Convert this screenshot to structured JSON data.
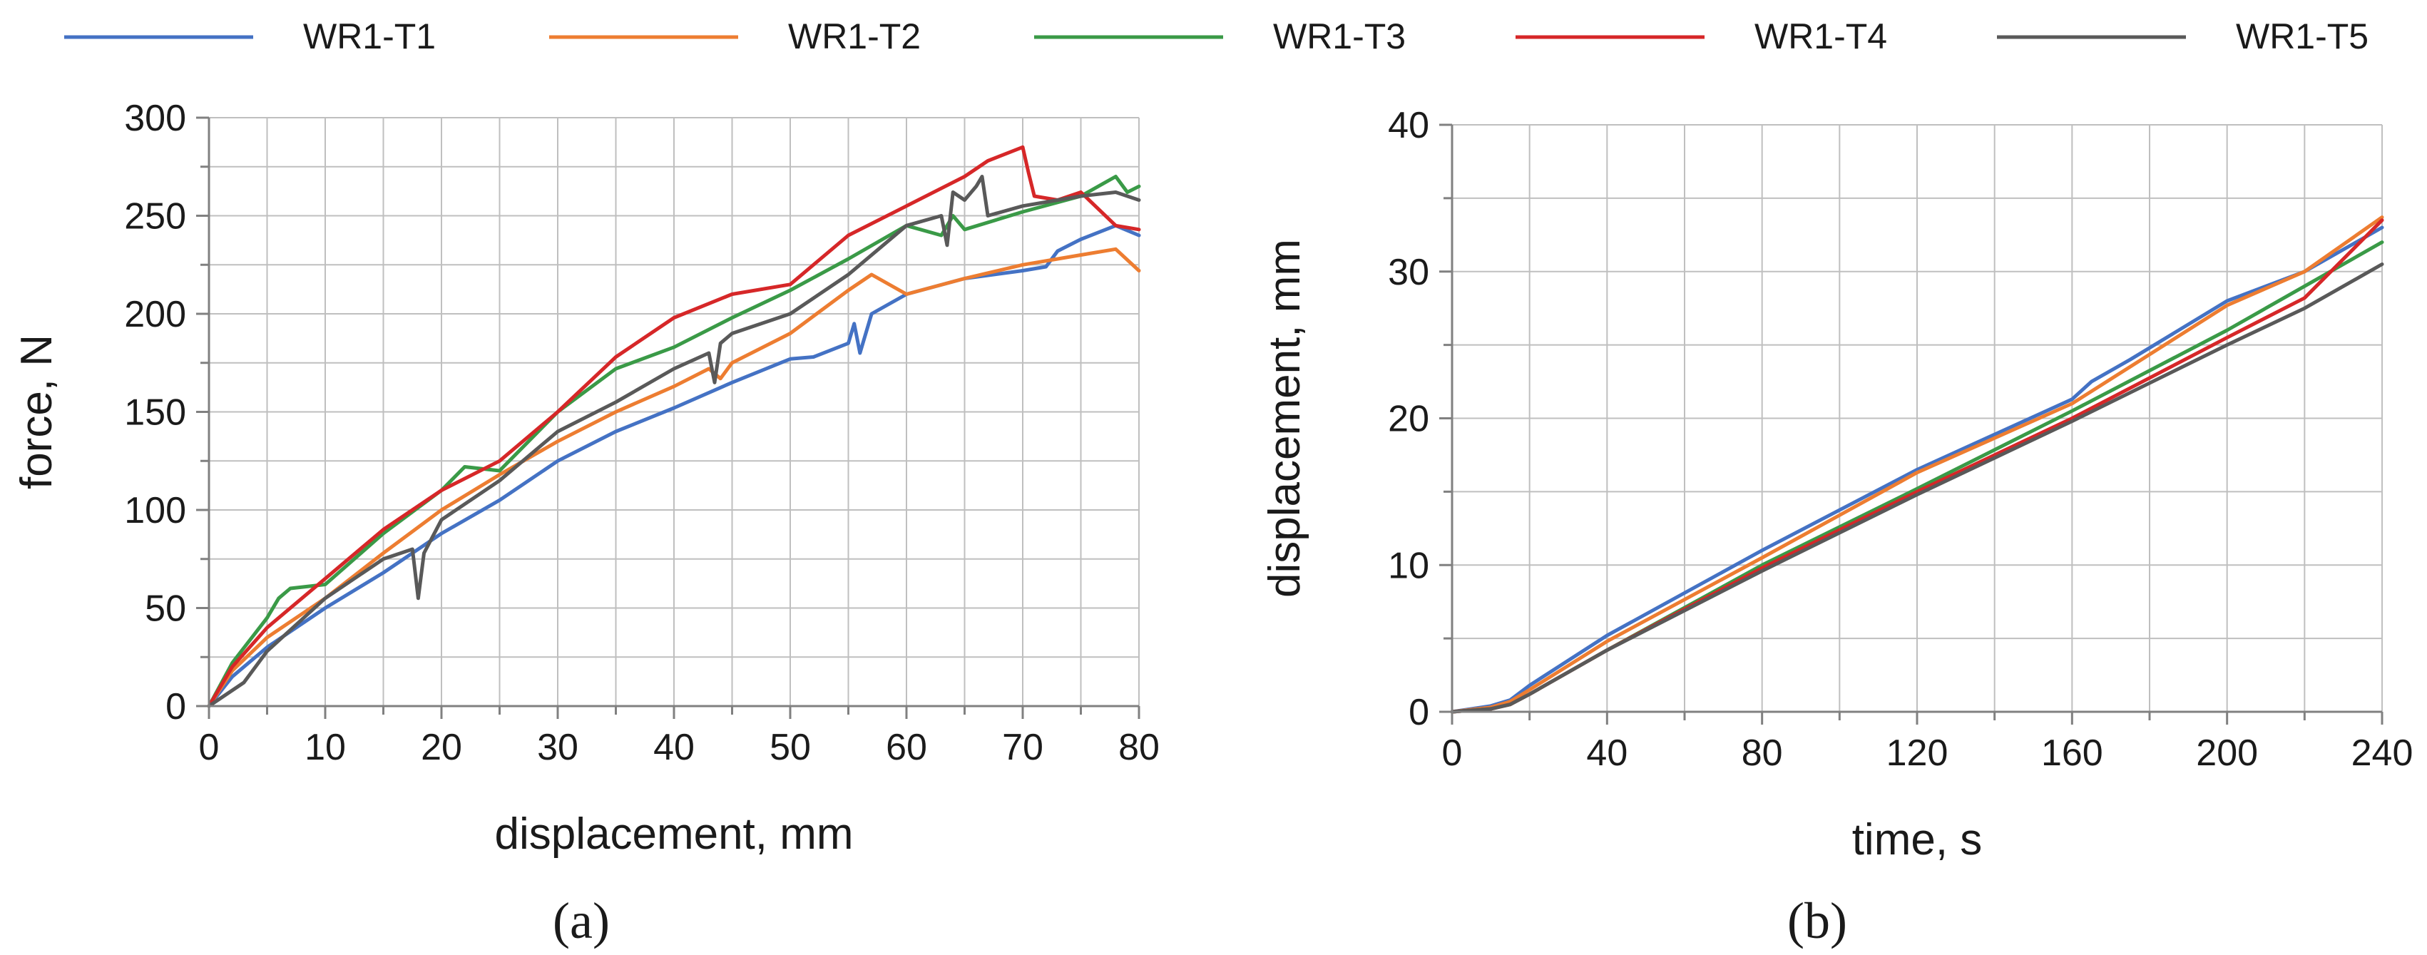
{
  "legend": [
    {
      "name": "WR1-T1",
      "color": "#4472c4"
    },
    {
      "name": "WR1-T2",
      "color": "#ed7d31"
    },
    {
      "name": "WR1-T3",
      "color": "#3a9a47"
    },
    {
      "name": "WR1-T4",
      "color": "#d62728"
    },
    {
      "name": "WR1-T5",
      "color": "#595959"
    }
  ],
  "chart_data": [
    {
      "panel": "a",
      "caption": "(a)",
      "type": "line",
      "title": "",
      "xlabel": "displacement, mm",
      "ylabel": "force, N",
      "xlim": [
        0,
        80
      ],
      "ylim": [
        0,
        300
      ],
      "xticks": [
        0,
        10,
        20,
        30,
        40,
        50,
        60,
        70,
        80
      ],
      "yticks": [
        0,
        50,
        100,
        150,
        200,
        250,
        300
      ],
      "xtick_labels": [
        "0",
        "10",
        "20",
        "30",
        "40",
        "50",
        "60",
        "70",
        "80"
      ],
      "ytick_labels": [
        "0",
        "50",
        "100",
        "150",
        "200",
        "250",
        "300"
      ],
      "grid": true,
      "series": [
        {
          "name": "WR1-T1",
          "x": [
            0,
            2,
            5,
            10,
            15,
            20,
            25,
            30,
            35,
            40,
            45,
            50,
            52,
            55,
            55.5,
            56,
            57,
            60,
            65,
            70,
            72,
            73,
            75,
            78,
            80
          ],
          "y": [
            0,
            15,
            30,
            50,
            68,
            88,
            105,
            125,
            140,
            152,
            165,
            177,
            178,
            185,
            195,
            180,
            200,
            210,
            218,
            222,
            224,
            232,
            238,
            245,
            240
          ]
        },
        {
          "name": "WR1-T2",
          "x": [
            0,
            2,
            5,
            10,
            15,
            20,
            25,
            30,
            35,
            40,
            43,
            44,
            45,
            50,
            55,
            57,
            60,
            65,
            70,
            75,
            78,
            80
          ],
          "y": [
            0,
            18,
            35,
            55,
            78,
            100,
            118,
            135,
            150,
            163,
            172,
            167,
            175,
            190,
            212,
            220,
            210,
            218,
            225,
            230,
            233,
            222
          ]
        },
        {
          "name": "WR1-T3",
          "x": [
            0,
            2,
            5,
            6,
            7,
            10,
            15,
            20,
            22,
            25,
            30,
            35,
            40,
            45,
            50,
            55,
            60,
            63,
            64,
            65,
            70,
            75,
            78,
            79,
            80
          ],
          "y": [
            0,
            22,
            45,
            55,
            60,
            62,
            88,
            110,
            122,
            120,
            150,
            172,
            183,
            198,
            212,
            228,
            245,
            240,
            250,
            243,
            252,
            260,
            270,
            262,
            265
          ]
        },
        {
          "name": "WR1-T4",
          "x": [
            0,
            2,
            5,
            10,
            15,
            20,
            25,
            30,
            35,
            40,
            45,
            50,
            55,
            60,
            65,
            67,
            70,
            70.5,
            71,
            73,
            75,
            78,
            80
          ],
          "y": [
            0,
            20,
            40,
            65,
            90,
            110,
            125,
            150,
            178,
            198,
            210,
            215,
            240,
            255,
            270,
            278,
            285,
            272,
            260,
            258,
            262,
            245,
            243
          ]
        },
        {
          "name": "WR1-T5",
          "x": [
            0,
            3,
            5,
            10,
            15,
            17.5,
            18,
            18.5,
            20,
            25,
            30,
            35,
            40,
            43,
            43.5,
            44,
            45,
            50,
            55,
            60,
            63,
            63.5,
            64,
            65,
            66,
            66.5,
            67,
            70,
            75,
            78,
            80
          ],
          "y": [
            0,
            12,
            28,
            55,
            75,
            80,
            55,
            78,
            95,
            115,
            140,
            155,
            172,
            180,
            165,
            185,
            190,
            200,
            220,
            245,
            250,
            235,
            262,
            258,
            265,
            270,
            250,
            255,
            260,
            262,
            258
          ]
        }
      ]
    },
    {
      "panel": "b",
      "caption": "(b)",
      "type": "line",
      "title": "",
      "xlabel": "time, s",
      "ylabel": "displacement, mm",
      "xlim": [
        0,
        240
      ],
      "ylim": [
        0,
        40
      ],
      "xticks": [
        0,
        40,
        80,
        120,
        160,
        200,
        240
      ],
      "yticks": [
        0,
        10,
        20,
        30,
        40
      ],
      "xtick_labels": [
        "0",
        "40",
        "80",
        "120",
        "160",
        "200",
        "240"
      ],
      "ytick_labels": [
        "0",
        "10",
        "20",
        "30",
        "40"
      ],
      "grid": true,
      "series": [
        {
          "name": "WR1-T1",
          "x": [
            0,
            10,
            15,
            20,
            40,
            80,
            120,
            160,
            165,
            175,
            200,
            220,
            240
          ],
          "y": [
            0,
            0.4,
            0.8,
            1.8,
            5.2,
            11.0,
            16.5,
            21.3,
            22.5,
            24.0,
            28.0,
            30.0,
            33.0
          ]
        },
        {
          "name": "WR1-T2",
          "x": [
            0,
            10,
            15,
            20,
            40,
            80,
            120,
            160,
            200,
            220,
            240
          ],
          "y": [
            0,
            0.3,
            0.7,
            1.5,
            4.8,
            10.5,
            16.3,
            21.0,
            27.7,
            30.0,
            33.7
          ]
        },
        {
          "name": "WR1-T3",
          "x": [
            0,
            10,
            15,
            20,
            40,
            80,
            120,
            160,
            200,
            220,
            240
          ],
          "y": [
            0,
            0.2,
            0.5,
            1.2,
            4.2,
            10.0,
            15.2,
            20.5,
            26.0,
            29.0,
            32.0
          ]
        },
        {
          "name": "WR1-T4",
          "x": [
            0,
            10,
            15,
            20,
            40,
            80,
            120,
            160,
            200,
            220,
            240
          ],
          "y": [
            0,
            0.2,
            0.5,
            1.2,
            4.2,
            9.8,
            15.0,
            20.0,
            25.5,
            28.2,
            33.5
          ]
        },
        {
          "name": "WR1-T5",
          "x": [
            0,
            10,
            15,
            20,
            40,
            80,
            120,
            160,
            200,
            220,
            240
          ],
          "y": [
            0,
            0.2,
            0.5,
            1.2,
            4.2,
            9.6,
            14.8,
            19.8,
            25.0,
            27.5,
            30.5
          ]
        }
      ]
    }
  ]
}
